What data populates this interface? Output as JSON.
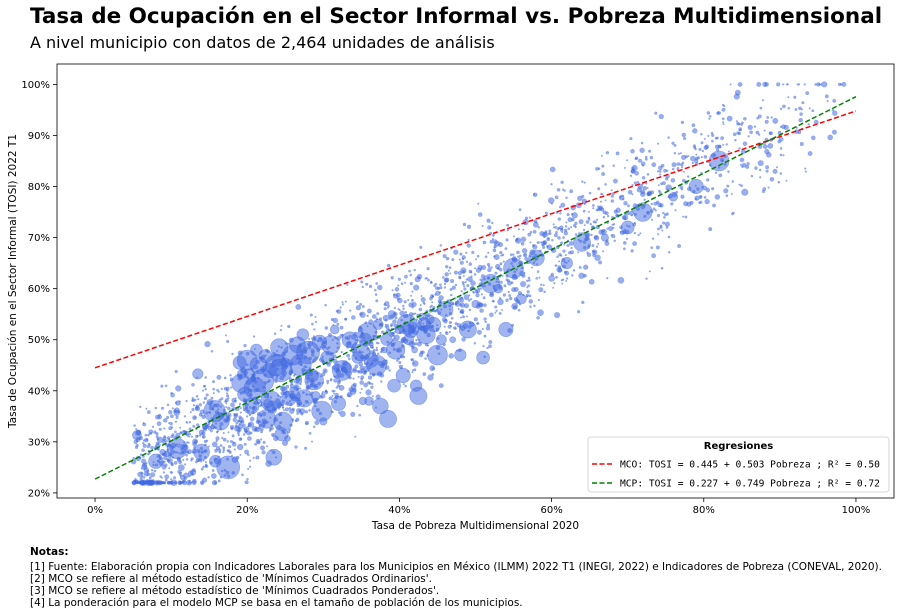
{
  "header": {
    "title": "Tasa de Ocupación en el Sector Informal vs. Pobreza Multidimensional",
    "subtitle": "A nivel municipio con datos de 2,464 unidades de análisis"
  },
  "chart_data": {
    "type": "scatter",
    "xlabel": "Tasa de Pobreza Multidimensional 2020",
    "ylabel": "Tasa de Ocupación en el Sector Informal (TOSI) 2022 T1",
    "xlim": [
      -0.05,
      1.05
    ],
    "ylim": [
      0.19,
      1.04
    ],
    "x_ticks": [
      0,
      0.2,
      0.4,
      0.6,
      0.8,
      1.0
    ],
    "x_tick_labels": [
      "0%",
      "20%",
      "40%",
      "60%",
      "80%",
      "100%"
    ],
    "y_ticks": [
      0.2,
      0.3,
      0.4,
      0.5,
      0.6,
      0.7,
      0.8,
      0.9,
      1.0
    ],
    "y_tick_labels": [
      "20%",
      "30%",
      "40%",
      "50%",
      "60%",
      "70%",
      "80%",
      "90%",
      "100%"
    ],
    "grid": false,
    "point_color": "#4169e1",
    "n_points": 2464,
    "point_size_encodes": "población del municipio",
    "regressions": [
      {
        "name": "MCO",
        "intercept": 0.445,
        "slope": 0.503,
        "r2": 0.5,
        "color": "#ff0000",
        "linestyle": "dashed",
        "x_range": [
          0,
          1
        ]
      },
      {
        "name": "MCP",
        "intercept": 0.227,
        "slope": 0.749,
        "r2": 0.72,
        "color": "#008000",
        "linestyle": "dashed",
        "x_range": [
          0,
          1
        ]
      }
    ],
    "legend": {
      "title": "Regresiones",
      "placement": "lower-right",
      "entries": [
        "MCO: TOSI = 0.445 + 0.503 Pobreza ; R² = 0.50",
        "MCP: TOSI = 0.227 + 0.749 Pobreza ; R² = 0.72"
      ]
    },
    "large_points": [
      [
        0.055,
        0.313
      ],
      [
        0.08,
        0.262
      ],
      [
        0.108,
        0.287
      ],
      [
        0.135,
        0.433
      ],
      [
        0.14,
        0.28
      ],
      [
        0.157,
        0.36
      ],
      [
        0.158,
        0.262
      ],
      [
        0.165,
        0.34
      ],
      [
        0.175,
        0.25
      ],
      [
        0.19,
        0.455
      ],
      [
        0.192,
        0.415
      ],
      [
        0.193,
        0.433
      ],
      [
        0.197,
        0.393
      ],
      [
        0.2,
        0.46
      ],
      [
        0.203,
        0.433
      ],
      [
        0.205,
        0.37
      ],
      [
        0.21,
        0.405
      ],
      [
        0.212,
        0.48
      ],
      [
        0.215,
        0.45
      ],
      [
        0.22,
        0.42
      ],
      [
        0.224,
        0.468
      ],
      [
        0.225,
        0.345
      ],
      [
        0.227,
        0.375
      ],
      [
        0.229,
        0.44
      ],
      [
        0.231,
        0.38
      ],
      [
        0.233,
        0.37
      ],
      [
        0.235,
        0.27
      ],
      [
        0.238,
        0.45
      ],
      [
        0.24,
        0.46
      ],
      [
        0.242,
        0.485
      ],
      [
        0.244,
        0.44
      ],
      [
        0.245,
        0.315
      ],
      [
        0.247,
        0.34
      ],
      [
        0.25,
        0.455
      ],
      [
        0.255,
        0.385
      ],
      [
        0.26,
        0.47
      ],
      [
        0.263,
        0.39
      ],
      [
        0.266,
        0.49
      ],
      [
        0.27,
        0.45
      ],
      [
        0.273,
        0.51
      ],
      [
        0.275,
        0.385
      ],
      [
        0.28,
        0.475
      ],
      [
        0.285,
        0.43
      ],
      [
        0.288,
        0.42
      ],
      [
        0.29,
        0.39
      ],
      [
        0.295,
        0.495
      ],
      [
        0.298,
        0.36
      ],
      [
        0.3,
        0.34
      ],
      [
        0.305,
        0.465
      ],
      [
        0.31,
        0.49
      ],
      [
        0.315,
        0.52
      ],
      [
        0.32,
        0.375
      ],
      [
        0.325,
        0.44
      ],
      [
        0.33,
        0.445
      ],
      [
        0.335,
        0.5
      ],
      [
        0.34,
        0.48
      ],
      [
        0.345,
        0.465
      ],
      [
        0.35,
        0.475
      ],
      [
        0.352,
        0.38
      ],
      [
        0.355,
        0.5
      ],
      [
        0.358,
        0.515
      ],
      [
        0.36,
        0.38
      ],
      [
        0.363,
        0.46
      ],
      [
        0.37,
        0.45
      ],
      [
        0.372,
        0.53
      ],
      [
        0.375,
        0.37
      ],
      [
        0.38,
        0.48
      ],
      [
        0.383,
        0.5
      ],
      [
        0.385,
        0.345
      ],
      [
        0.39,
        0.55
      ],
      [
        0.393,
        0.41
      ],
      [
        0.395,
        0.48
      ],
      [
        0.4,
        0.52
      ],
      [
        0.405,
        0.43
      ],
      [
        0.41,
        0.53
      ],
      [
        0.412,
        0.5
      ],
      [
        0.415,
        0.52
      ],
      [
        0.42,
        0.48
      ],
      [
        0.422,
        0.41
      ],
      [
        0.425,
        0.39
      ],
      [
        0.43,
        0.545
      ],
      [
        0.432,
        0.53
      ],
      [
        0.435,
        0.51
      ],
      [
        0.44,
        0.54
      ],
      [
        0.445,
        0.53
      ],
      [
        0.45,
        0.47
      ],
      [
        0.455,
        0.5
      ],
      [
        0.46,
        0.56
      ],
      [
        0.47,
        0.5
      ],
      [
        0.48,
        0.47
      ],
      [
        0.49,
        0.52
      ],
      [
        0.5,
        0.57
      ],
      [
        0.51,
        0.465
      ],
      [
        0.52,
        0.61
      ],
      [
        0.53,
        0.6
      ],
      [
        0.54,
        0.52
      ],
      [
        0.55,
        0.64
      ],
      [
        0.56,
        0.58
      ],
      [
        0.58,
        0.66
      ],
      [
        0.6,
        0.62
      ],
      [
        0.62,
        0.65
      ],
      [
        0.64,
        0.69
      ],
      [
        0.67,
        0.7
      ],
      [
        0.7,
        0.72
      ],
      [
        0.72,
        0.75
      ],
      [
        0.76,
        0.78
      ],
      [
        0.79,
        0.8
      ],
      [
        0.82,
        0.85
      ]
    ]
  }
}
